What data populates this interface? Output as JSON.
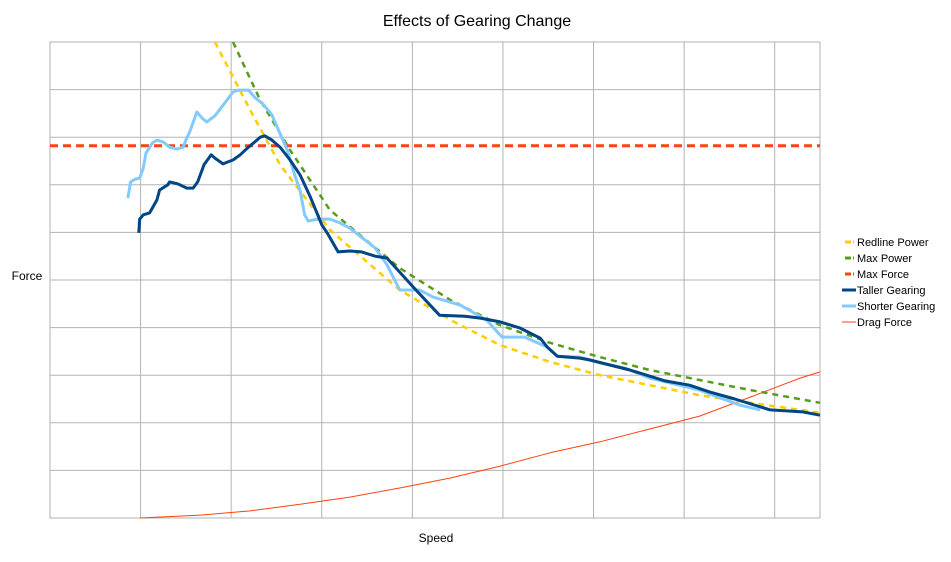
{
  "chart_data": {
    "type": "line",
    "title": "Effects of Gearing Change",
    "xlabel": "Speed",
    "ylabel": "Force",
    "xlim": [
      0,
      8.5
    ],
    "ylim": [
      0,
      10
    ],
    "grid": true,
    "tick_labels_shown": false,
    "legend_position": "right",
    "series": [
      {
        "name": "Redline Power",
        "color": "#FFCC00",
        "style": "dashed",
        "x": [
          1.82,
          2.21,
          2.54,
          3.09,
          3.86,
          4.42,
          4.97,
          5.52,
          6.07,
          6.62,
          7.17,
          7.73,
          8.28,
          8.5
        ],
        "y": [
          10.0,
          8.57,
          7.42,
          6.05,
          4.79,
          4.16,
          3.63,
          3.28,
          3.0,
          2.79,
          2.58,
          2.42,
          2.27,
          2.21
        ]
      },
      {
        "name": "Max Power",
        "color": "#579D1C",
        "style": "dashed",
        "x": [
          2.02,
          2.32,
          2.65,
          3.09,
          3.86,
          4.42,
          4.97,
          5.52,
          6.07,
          6.62,
          7.17,
          7.73,
          8.5
        ],
        "y": [
          10.0,
          8.78,
          7.73,
          6.47,
          5.25,
          4.58,
          4.05,
          3.68,
          3.38,
          3.11,
          2.9,
          2.69,
          2.42
        ]
      },
      {
        "name": "Max Force",
        "color": "#FF420E",
        "style": "dashed",
        "x": [
          0,
          8.5
        ],
        "y": [
          7.82,
          7.82
        ]
      },
      {
        "name": "Taller Gearing",
        "color": "#004586",
        "style": "solid",
        "x": [
          0.98,
          0.99,
          1.03,
          1.1,
          1.18,
          1.21,
          1.3,
          1.32,
          1.41,
          1.51,
          1.58,
          1.63,
          1.7,
          1.78,
          1.82,
          1.91,
          1.96,
          2.02,
          2.1,
          2.19,
          2.26,
          2.32,
          2.37,
          2.45,
          2.54,
          2.65,
          2.76,
          2.87,
          3.0,
          3.06,
          3.18,
          3.31,
          3.44,
          3.59,
          3.72,
          4.01,
          4.3,
          4.58,
          4.75,
          4.97,
          5.19,
          5.41,
          5.49,
          5.6,
          5.85,
          5.96,
          6.4,
          6.79,
          7.06,
          7.28,
          7.56,
          7.95,
          8.31,
          8.5
        ],
        "y": [
          5.99,
          6.28,
          6.37,
          6.41,
          6.68,
          6.89,
          7.0,
          7.06,
          7.02,
          6.93,
          6.93,
          7.06,
          7.42,
          7.63,
          7.56,
          7.44,
          7.48,
          7.52,
          7.63,
          7.79,
          7.9,
          8.0,
          8.03,
          7.94,
          7.79,
          7.52,
          7.21,
          6.76,
          6.16,
          5.99,
          5.59,
          5.61,
          5.59,
          5.5,
          5.46,
          4.85,
          4.26,
          4.24,
          4.2,
          4.12,
          3.99,
          3.78,
          3.59,
          3.4,
          3.36,
          3.32,
          3.11,
          2.88,
          2.79,
          2.65,
          2.5,
          2.27,
          2.23,
          2.16
        ]
      },
      {
        "name": "Shorter Gearing",
        "color": "#83CAFF",
        "style": "solid",
        "x": [
          0.86,
          0.89,
          0.94,
          0.99,
          1.03,
          1.06,
          1.13,
          1.18,
          1.25,
          1.32,
          1.4,
          1.47,
          1.5,
          1.55,
          1.62,
          1.68,
          1.73,
          1.82,
          1.93,
          2.02,
          2.08,
          2.19,
          2.27,
          2.35,
          2.45,
          2.54,
          2.62,
          2.7,
          2.76,
          2.81,
          2.85,
          2.96,
          3.09,
          3.2,
          3.31,
          3.59,
          3.72,
          3.86,
          4.08,
          4.23,
          4.53,
          4.82,
          4.99,
          5.24,
          5.49,
          5.6,
          5.85,
          6.07,
          6.35,
          6.62,
          6.84,
          7.17,
          7.4,
          7.62,
          7.84
        ],
        "y": [
          6.72,
          7.06,
          7.12,
          7.14,
          7.35,
          7.67,
          7.88,
          7.94,
          7.9,
          7.79,
          7.75,
          7.79,
          7.94,
          8.15,
          8.53,
          8.4,
          8.32,
          8.45,
          8.72,
          8.95,
          8.99,
          8.99,
          8.82,
          8.7,
          8.47,
          8.07,
          7.73,
          7.21,
          6.89,
          6.37,
          6.24,
          6.28,
          6.28,
          6.2,
          6.09,
          5.67,
          5.32,
          4.79,
          4.79,
          4.64,
          4.47,
          4.16,
          3.8,
          3.8,
          3.59,
          3.4,
          3.38,
          3.26,
          3.15,
          2.94,
          2.84,
          2.69,
          2.52,
          2.37,
          2.27
        ]
      },
      {
        "name": "Drag Force",
        "color": "#FF420E",
        "style": "thin",
        "x": [
          0.99,
          1.66,
          2.21,
          2.76,
          3.31,
          3.86,
          4.42,
          4.97,
          5.52,
          6.07,
          6.62,
          7.17,
          7.73,
          8.28,
          8.5
        ],
        "y": [
          0.0,
          0.06,
          0.15,
          0.29,
          0.44,
          0.63,
          0.84,
          1.09,
          1.37,
          1.6,
          1.87,
          2.14,
          2.54,
          2.94,
          3.07
        ]
      }
    ]
  }
}
